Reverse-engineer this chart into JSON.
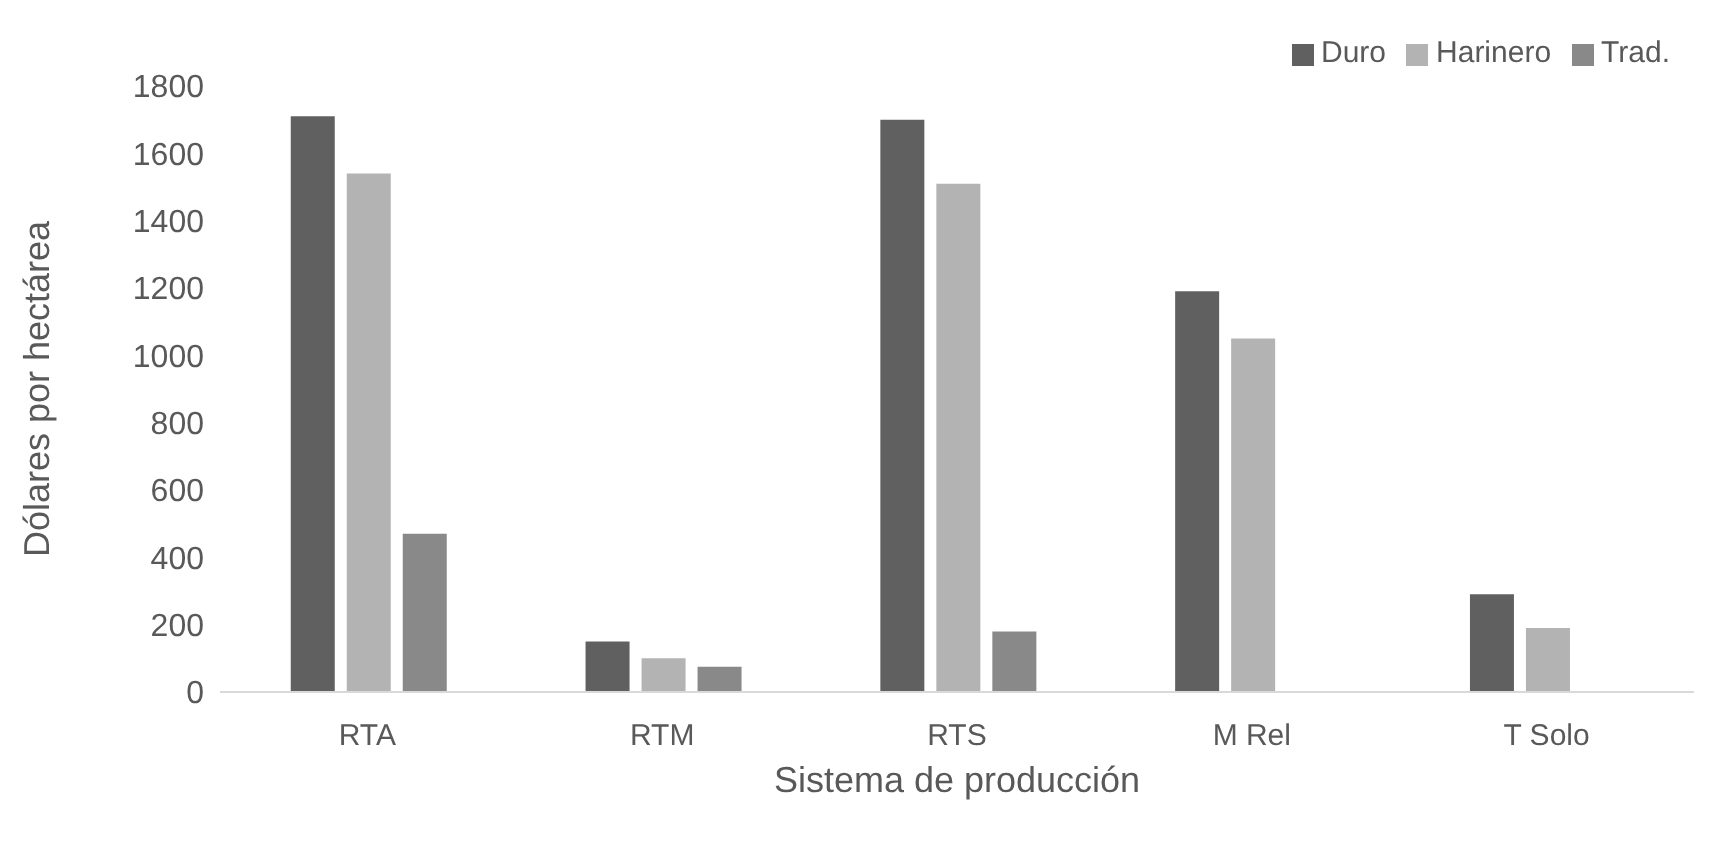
{
  "chart_data": {
    "type": "bar",
    "xlabel": "Sistema de producción",
    "ylabel": "Dólares por hectárea",
    "categories": [
      "RTA",
      "RTM",
      "RTS",
      "M Rel",
      "T Solo"
    ],
    "series": [
      {
        "name": "Duro",
        "color": "#606060",
        "values": [
          1710,
          150,
          1700,
          1190,
          290
        ]
      },
      {
        "name": "Harinero",
        "color": "#b3b3b3",
        "values": [
          1540,
          100,
          1510,
          1050,
          190
        ]
      },
      {
        "name": "Trad.",
        "color": "#898989",
        "values": [
          470,
          75,
          180,
          null,
          null
        ]
      }
    ],
    "ylim": [
      0,
      1800
    ],
    "yticks": [
      0,
      200,
      400,
      600,
      800,
      1000,
      1200,
      1400,
      1600,
      1800
    ],
    "grid": false,
    "legend": "top right"
  }
}
